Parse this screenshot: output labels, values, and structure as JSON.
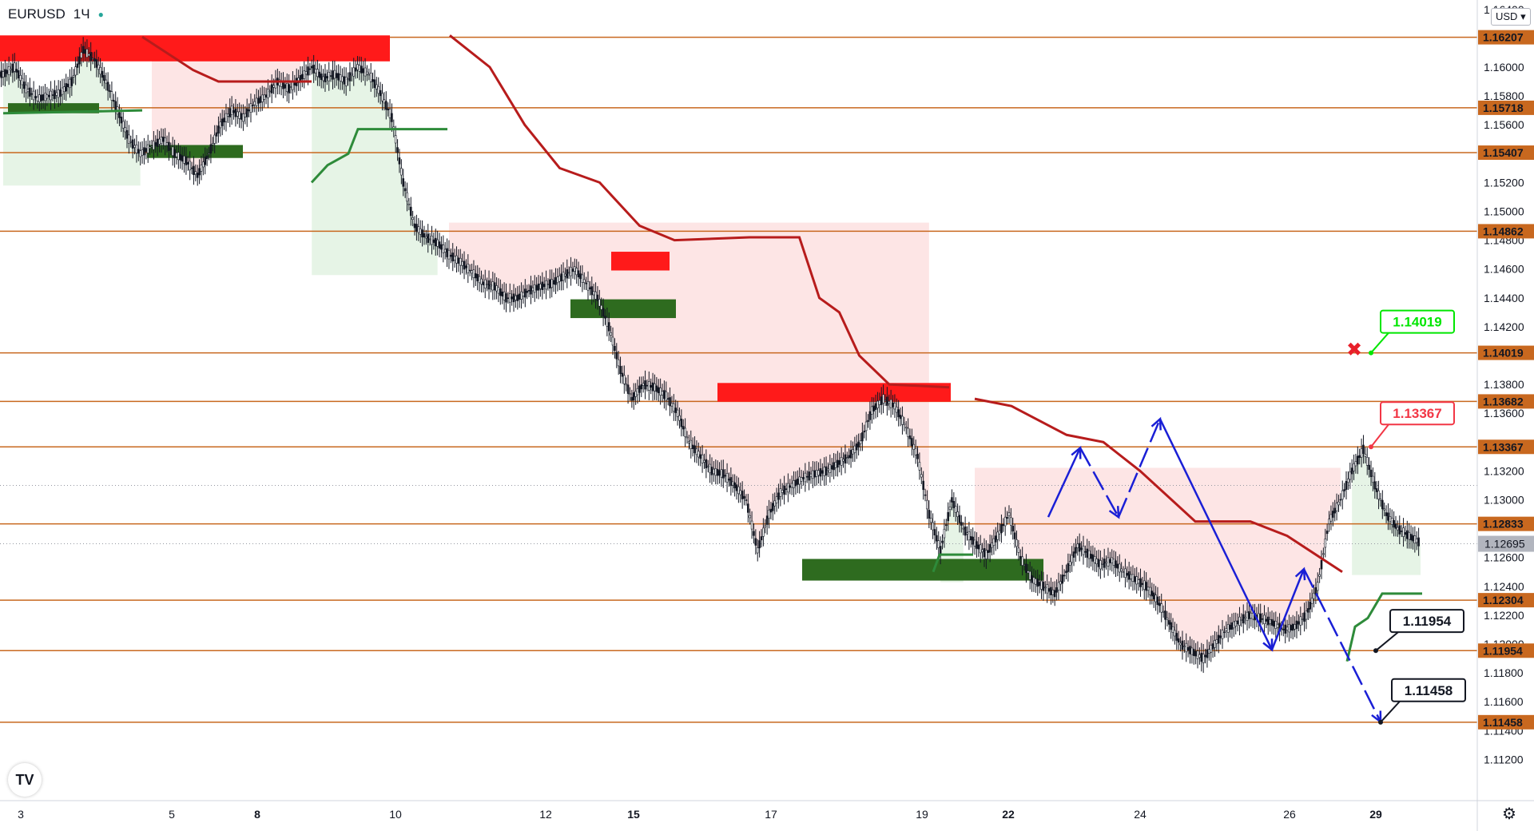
{
  "header": {
    "symbol": "EURUSD",
    "interval": "1Ч",
    "status_dot": "●"
  },
  "currency_button": {
    "label": "USD",
    "chevron": "▾"
  },
  "logo": {
    "text": "TV"
  },
  "settings": {
    "icon": "gear-icon",
    "glyph": "⚙"
  },
  "colors": {
    "level_line": "#c8681f",
    "level_label_bg": "#c8681f",
    "current_price_bg": "#b2b5be",
    "trail_red": "#b71c1c",
    "trail_green": "#2e8b3a",
    "fill_red": "#fde2e2",
    "fill_green": "#e3f3e3",
    "zone_red": "#ff1a1a",
    "zone_green": "#2e6b1f",
    "path_blue": "#1a1fd6",
    "candle": "#131722"
  },
  "chart_data": {
    "type": "candlestick",
    "symbol": "EURUSD",
    "interval": "1Ч",
    "ylim": [
      1.112,
      1.164
    ],
    "y_ticks": [
      "1.16400",
      "1.16000",
      "1.15800",
      "1.15600",
      "1.15200",
      "1.15000",
      "1.14800",
      "1.14600",
      "1.14400",
      "1.14200",
      "1.13800",
      "1.13600",
      "1.13200",
      "1.13000",
      "1.12600",
      "1.12400",
      "1.12200",
      "1.12000",
      "1.11800",
      "1.11600",
      "1.11400",
      "1.11200"
    ],
    "x_ticks": [
      {
        "label": "3",
        "bold": false
      },
      {
        "label": "5",
        "bold": false
      },
      {
        "label": "8",
        "bold": true
      },
      {
        "label": "10",
        "bold": false
      },
      {
        "label": "12",
        "bold": false
      },
      {
        "label": "15",
        "bold": true
      },
      {
        "label": "17",
        "bold": false
      },
      {
        "label": "19",
        "bold": false
      },
      {
        "label": "22",
        "bold": true
      },
      {
        "label": "24",
        "bold": false
      },
      {
        "label": "26",
        "bold": false
      },
      {
        "label": "29",
        "bold": true
      }
    ],
    "levels": [
      "1.16207",
      "1.15718",
      "1.15407",
      "1.14862",
      "1.14019",
      "1.13682",
      "1.13367",
      "1.12833",
      "1.12304",
      "1.11954",
      "1.11458"
    ],
    "current_price": "1.12695",
    "dotted_levels": [
      1.131,
      1.12695
    ],
    "callouts": [
      {
        "text": "1.14019",
        "color": "#00e600"
      },
      {
        "text": "1.13367",
        "color": "#f23645"
      },
      {
        "text": "1.11954",
        "color": "#131722"
      },
      {
        "text": "1.11458",
        "color": "#131722"
      }
    ],
    "marker": {
      "glyph": "✖",
      "color": "#e8202a"
    },
    "price_path": [
      1.1595,
      1.16,
      1.1585,
      1.1578,
      1.158,
      1.1582,
      1.159,
      1.1612,
      1.1605,
      1.159,
      1.157,
      1.155,
      1.154,
      1.1545,
      1.155,
      1.154,
      1.1535,
      1.1525,
      1.154,
      1.156,
      1.157,
      1.1565,
      1.1575,
      1.158,
      1.159,
      1.1585,
      1.1592,
      1.16,
      1.1592,
      1.1595,
      1.159,
      1.16,
      1.1595,
      1.1582,
      1.1565,
      1.152,
      1.149,
      1.1482,
      1.1478,
      1.147,
      1.1465,
      1.1458,
      1.145,
      1.1448,
      1.144,
      1.144,
      1.1445,
      1.1448,
      1.145,
      1.1455,
      1.146,
      1.145,
      1.144,
      1.142,
      1.139,
      1.137,
      1.138,
      1.1378,
      1.1372,
      1.136,
      1.134,
      1.133,
      1.132,
      1.1318,
      1.131,
      1.13,
      1.1265,
      1.129,
      1.1305,
      1.131,
      1.1315,
      1.1318,
      1.132,
      1.1325,
      1.133,
      1.134,
      1.1362,
      1.137,
      1.1365,
      1.135,
      1.133,
      1.129,
      1.1265,
      1.13,
      1.128,
      1.127,
      1.1262,
      1.1275,
      1.129,
      1.126,
      1.1245,
      1.124,
      1.1235,
      1.125,
      1.1268,
      1.1262,
      1.1255,
      1.1258,
      1.125,
      1.1245,
      1.124,
      1.123,
      1.1215,
      1.12,
      1.1195,
      1.119,
      1.12,
      1.121,
      1.1215,
      1.122,
      1.1218,
      1.1215,
      1.121,
      1.1212,
      1.122,
      1.124,
      1.1285,
      1.13,
      1.132,
      1.1335,
      1.131,
      1.129,
      1.128,
      1.1275,
      1.127
    ],
    "trail_red_segments": [
      [
        [
          1.1621,
          0
        ],
        [
          1.1598,
          0.3
        ],
        [
          1.159,
          0.45
        ],
        [
          1.159,
          1
        ]
      ],
      [
        [
          1.1622,
          0
        ],
        [
          1.16,
          0.08
        ],
        [
          1.156,
          0.15
        ],
        [
          1.153,
          0.22
        ],
        [
          1.152,
          0.3
        ],
        [
          1.149,
          0.38
        ],
        [
          1.148,
          0.45
        ],
        [
          1.1482,
          0.6
        ],
        [
          1.1482,
          0.7
        ],
        [
          1.144,
          0.74
        ],
        [
          1.143,
          0.78
        ],
        [
          1.14,
          0.82
        ],
        [
          1.138,
          0.88
        ],
        [
          1.1378,
          1
        ]
      ],
      [
        [
          1.137,
          0
        ],
        [
          1.1365,
          0.1
        ],
        [
          1.1345,
          0.25
        ],
        [
          1.134,
          0.35
        ],
        [
          1.132,
          0.45
        ],
        [
          1.1285,
          0.6
        ],
        [
          1.1285,
          0.75
        ],
        [
          1.1275,
          0.85
        ],
        [
          1.125,
          1
        ]
      ]
    ],
    "zones": [
      {
        "color": "red",
        "top": 1.1622,
        "bottom": 1.1604
      },
      {
        "color": "green",
        "top": 1.1575,
        "bottom": 1.1568
      },
      {
        "color": "green",
        "top": 1.1546,
        "bottom": 1.1537
      },
      {
        "color": "red",
        "top": 1.1472,
        "bottom": 1.1459
      },
      {
        "color": "green",
        "top": 1.1439,
        "bottom": 1.1426
      },
      {
        "color": "red",
        "top": 1.1381,
        "bottom": 1.1368
      },
      {
        "color": "green",
        "top": 1.1259,
        "bottom": 1.1244
      }
    ],
    "blue_path": [
      1.1288,
      1.1336,
      1.1288,
      1.1356,
      1.1196,
      1.1252,
      1.1146
    ]
  }
}
